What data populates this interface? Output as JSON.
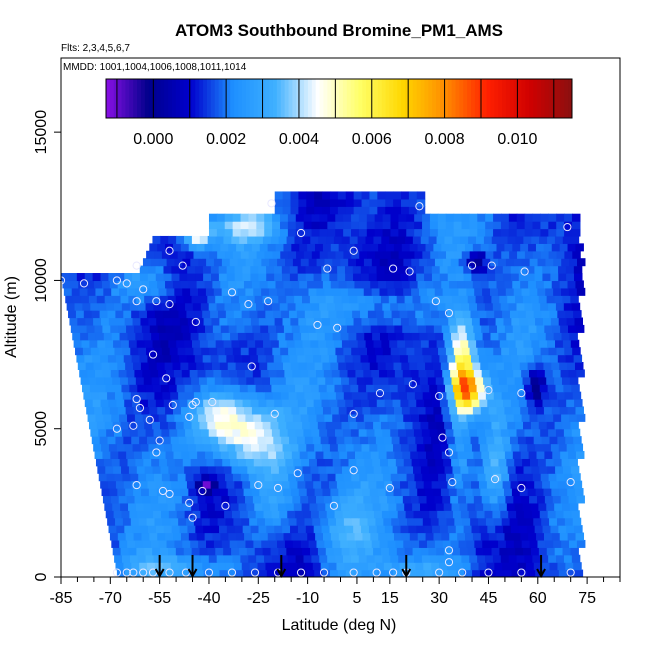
{
  "chart_data": {
    "type": "heatmap",
    "title": "ATOM3 Southbound Bromine_PM1_AMS",
    "annotations": {
      "flights": "Flts: 2,3,4,5,6,7",
      "dates": "MMDD: 1001,1004,1006,1008,1011,1014"
    },
    "xlabel": "Latitude (deg N)",
    "ylabel": "Altitude (m)",
    "xlim": [
      -85,
      85
    ],
    "ylim": [
      0,
      17500
    ],
    "x_ticks": [
      -85,
      -70,
      -55,
      -40,
      -25,
      -10,
      5,
      15,
      30,
      45,
      60,
      75
    ],
    "x_tick_labels": [
      "-85",
      "-70",
      "-55",
      "-40",
      "-25",
      "-10",
      "5",
      "15",
      "30",
      "45",
      "60",
      "75"
    ],
    "x_minor_ticks": [
      -80,
      -75,
      -65,
      -60,
      -50,
      -45,
      -35,
      -30,
      -20,
      -15,
      -5,
      0,
      10,
      20,
      25,
      35,
      40,
      50,
      55,
      65,
      70,
      80,
      85
    ],
    "y_ticks": [
      0,
      5000,
      10000,
      15000
    ],
    "y_tick_labels": [
      "0",
      "5000",
      "10000",
      "15000"
    ],
    "colorbar": {
      "range": [
        -0.0013,
        0.0115
      ],
      "ticks": [
        0.0,
        0.002,
        0.004,
        0.006,
        0.008,
        0.01
      ],
      "tick_labels": [
        "0.000",
        "0.002",
        "0.004",
        "0.006",
        "0.008",
        "0.010"
      ],
      "colors": [
        "#8a10e6",
        "#00008b",
        "#0000cd",
        "#1e90ff",
        "#3fb0ff",
        "#ffffff",
        "#ffff66",
        "#ffd700",
        "#ff8c00",
        "#ff2000",
        "#d00000",
        "#8b1010"
      ]
    },
    "field": {
      "x_range": [
        -72,
        72
      ],
      "y_range": [
        0,
        13000
      ],
      "bottom_left_lat": -68,
      "top_left_lat": -85,
      "blobs": [
        {
          "lat": -30,
          "alt": 4600,
          "value": 0.0048,
          "w": 12,
          "h": 1200
        },
        {
          "lat": -38,
          "alt": 5400,
          "value": 0.004,
          "w": 9,
          "h": 900
        },
        {
          "lat": 38,
          "alt": 6200,
          "value": 0.0065,
          "w": 5,
          "h": 700
        },
        {
          "lat": 36,
          "alt": 7200,
          "value": 0.0055,
          "w": 4,
          "h": 1400
        },
        {
          "lat": 35,
          "alt": 5000,
          "value": 0.0035,
          "w": 4,
          "h": 2500
        },
        {
          "lat": 46,
          "alt": 3500,
          "value": 0.0035,
          "w": 4,
          "h": 2000
        },
        {
          "lat": -22,
          "alt": 2500,
          "value": 0.003,
          "w": 8,
          "h": 1500
        },
        {
          "lat": -45,
          "alt": 11500,
          "value": 0.0055,
          "w": 4,
          "h": 500
        },
        {
          "lat": -30,
          "alt": 11700,
          "value": 0.0035,
          "w": 10,
          "h": 500
        },
        {
          "lat": -60,
          "alt": 9800,
          "value": 0.003,
          "w": 10,
          "h": 800
        },
        {
          "lat": -55,
          "alt": 200,
          "value": 0.003,
          "w": 15,
          "h": 400
        },
        {
          "lat": 20,
          "alt": 200,
          "value": 0.0025,
          "w": 20,
          "h": 400
        },
        {
          "lat": 10,
          "alt": 9000,
          "value": 0.003,
          "w": 15,
          "h": 800
        },
        {
          "lat": 58,
          "alt": 6300,
          "value": -0.0008,
          "w": 3,
          "h": 600
        },
        {
          "lat": 40,
          "alt": 10500,
          "value": -0.0006,
          "w": 3,
          "h": 400
        },
        {
          "lat": -42,
          "alt": 3000,
          "value": -0.0005,
          "w": 3,
          "h": 300
        },
        {
          "lat": 0,
          "alt": 1500,
          "value": 0.0028,
          "w": 10,
          "h": 1200
        }
      ]
    },
    "sample_points": [
      {
        "lat": -52,
        "alt": 11000
      },
      {
        "lat": -48,
        "alt": 10500
      },
      {
        "lat": -62,
        "alt": 10500
      },
      {
        "lat": -68,
        "alt": 10000
      },
      {
        "lat": -85,
        "alt": 10000
      },
      {
        "lat": -78,
        "alt": 9900
      },
      {
        "lat": -60,
        "alt": 9700
      },
      {
        "lat": -56,
        "alt": 9300
      },
      {
        "lat": -52,
        "alt": 9200
      },
      {
        "lat": -62,
        "alt": 9300
      },
      {
        "lat": -65,
        "alt": 9900
      },
      {
        "lat": -33,
        "alt": 9600
      },
      {
        "lat": -28,
        "alt": 9200
      },
      {
        "lat": -22,
        "alt": 9300
      },
      {
        "lat": -44,
        "alt": 8600
      },
      {
        "lat": -12,
        "alt": 11600
      },
      {
        "lat": -21,
        "alt": 12600
      },
      {
        "lat": 4,
        "alt": 11000
      },
      {
        "lat": -4,
        "alt": 10400
      },
      {
        "lat": 16,
        "alt": 10400
      },
      {
        "lat": 21,
        "alt": 10300
      },
      {
        "lat": 24,
        "alt": 12500
      },
      {
        "lat": 40,
        "alt": 10500
      },
      {
        "lat": 46,
        "alt": 10500
      },
      {
        "lat": 56,
        "alt": 10300
      },
      {
        "lat": 69,
        "alt": 11800
      },
      {
        "lat": -7,
        "alt": 8500
      },
      {
        "lat": -1,
        "alt": 8400
      },
      {
        "lat": 29,
        "alt": 9300
      },
      {
        "lat": 33,
        "alt": 8900
      },
      {
        "lat": -57,
        "alt": 7500
      },
      {
        "lat": -53,
        "alt": 6700
      },
      {
        "lat": -27,
        "alt": 7100
      },
      {
        "lat": 22,
        "alt": 6500
      },
      {
        "lat": 12,
        "alt": 6200
      },
      {
        "lat": 30,
        "alt": 6100
      },
      {
        "lat": 45,
        "alt": 6300
      },
      {
        "lat": 55,
        "alt": 6200
      },
      {
        "lat": -62,
        "alt": 6000
      },
      {
        "lat": -61,
        "alt": 5700
      },
      {
        "lat": -51,
        "alt": 5800
      },
      {
        "lat": -45,
        "alt": 5800
      },
      {
        "lat": -44,
        "alt": 5900
      },
      {
        "lat": -39,
        "alt": 5900
      },
      {
        "lat": -20,
        "alt": 5500
      },
      {
        "lat": 4,
        "alt": 5500
      },
      {
        "lat": -63,
        "alt": 5100
      },
      {
        "lat": -68,
        "alt": 5000
      },
      {
        "lat": -58,
        "alt": 5300
      },
      {
        "lat": -46,
        "alt": 5400
      },
      {
        "lat": -55,
        "alt": 4600
      },
      {
        "lat": -56,
        "alt": 4200
      },
      {
        "lat": 31,
        "alt": 4700
      },
      {
        "lat": 33,
        "alt": 4200
      },
      {
        "lat": 4,
        "alt": 3600
      },
      {
        "lat": -13,
        "alt": 3500
      },
      {
        "lat": -25,
        "alt": 3100
      },
      {
        "lat": -19,
        "alt": 3000
      },
      {
        "lat": 15,
        "alt": 3000
      },
      {
        "lat": 34,
        "alt": 3200
      },
      {
        "lat": 47,
        "alt": 3300
      },
      {
        "lat": 55,
        "alt": 3000
      },
      {
        "lat": -62,
        "alt": 3100
      },
      {
        "lat": -42,
        "alt": 2900
      },
      {
        "lat": -54,
        "alt": 2900
      },
      {
        "lat": -52,
        "alt": 2800
      },
      {
        "lat": -46,
        "alt": 2500
      },
      {
        "lat": -35,
        "alt": 2400
      },
      {
        "lat": -2,
        "alt": 2400
      },
      {
        "lat": -45,
        "alt": 2000
      },
      {
        "lat": 70,
        "alt": 3200
      },
      {
        "lat": 33,
        "alt": 900
      },
      {
        "lat": 33,
        "alt": 500
      },
      {
        "lat": -68,
        "alt": 150
      },
      {
        "lat": -65,
        "alt": 150
      },
      {
        "lat": -63,
        "alt": 150
      },
      {
        "lat": -60,
        "alt": 150
      },
      {
        "lat": -57,
        "alt": 150
      },
      {
        "lat": -52,
        "alt": 150
      },
      {
        "lat": -47,
        "alt": 150
      },
      {
        "lat": -40,
        "alt": 150
      },
      {
        "lat": -33,
        "alt": 150
      },
      {
        "lat": -26,
        "alt": 150
      },
      {
        "lat": -19,
        "alt": 150
      },
      {
        "lat": -12,
        "alt": 150
      },
      {
        "lat": -5,
        "alt": 150
      },
      {
        "lat": 4,
        "alt": 150
      },
      {
        "lat": 11,
        "alt": 150
      },
      {
        "lat": 16,
        "alt": 150
      },
      {
        "lat": 20,
        "alt": 150
      },
      {
        "lat": 30,
        "alt": 150
      },
      {
        "lat": 37,
        "alt": 150
      },
      {
        "lat": 45,
        "alt": 150
      },
      {
        "lat": 55,
        "alt": 150
      },
      {
        "lat": 70,
        "alt": 150
      }
    ],
    "arrows_lat": [
      -55,
      -45,
      -18,
      20,
      61
    ]
  }
}
